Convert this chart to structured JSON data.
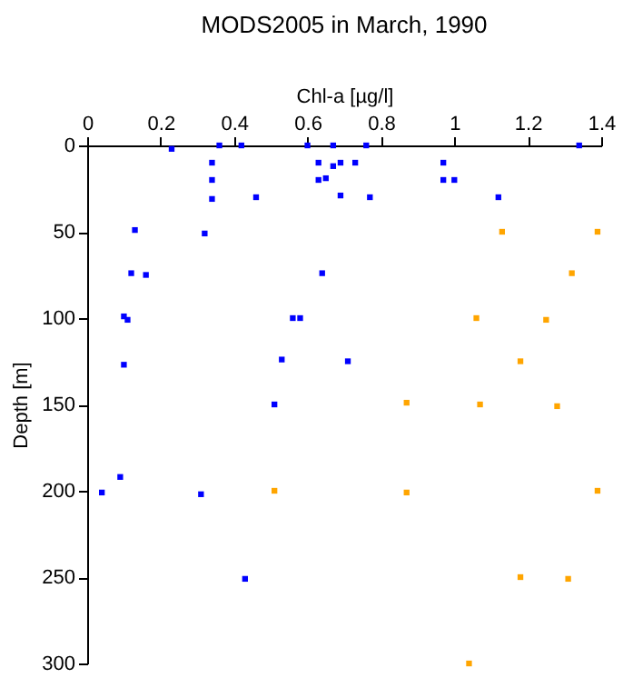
{
  "chart_data": {
    "type": "scatter",
    "title": "MODS2005 in March, 1990",
    "xlabel": "Chl-a [µg/l]",
    "ylabel": "Depth [m]",
    "marker": "square",
    "grid": false,
    "xlim": [
      0,
      1.4
    ],
    "xticks": [
      0,
      0.2,
      0.4,
      0.6,
      0.8,
      1,
      1.2,
      1.4
    ],
    "ylim": [
      300,
      0
    ],
    "yticks": [
      0,
      50,
      100,
      150,
      200,
      250,
      300
    ],
    "series": [
      {
        "color": "#0000ff",
        "x": [
          0.23,
          0.36,
          0.42,
          0.6,
          0.67,
          0.76,
          1.34,
          0.34,
          0.63,
          0.67,
          0.69,
          0.73,
          0.97,
          0.34,
          0.63,
          0.65,
          0.97,
          1.0,
          0.34,
          0.46,
          0.69,
          0.77,
          1.12,
          0.13,
          0.32,
          0.12,
          0.16,
          0.64,
          0.1,
          0.11,
          0.56,
          0.58,
          0.1,
          0.53,
          0.71,
          0.51,
          0.04,
          0.09,
          0.31,
          0.43
        ],
        "values": [
          2,
          0,
          0,
          0,
          0,
          0,
          0,
          10,
          10,
          12,
          10,
          10,
          10,
          20,
          20,
          19,
          20,
          20,
          31,
          30,
          29,
          30,
          30,
          49,
          51,
          74,
          75,
          74,
          99,
          101,
          100,
          100,
          127,
          124,
          125,
          150,
          201,
          192,
          202,
          251
        ]
      },
      {
        "color": "#ffa500",
        "x": [
          1.13,
          1.39,
          1.32,
          1.06,
          1.25,
          1.18,
          0.87,
          1.07,
          1.28,
          0.51,
          0.87,
          1.39,
          1.18,
          1.31,
          1.04
        ],
        "values": [
          50,
          50,
          74,
          100,
          101,
          125,
          149,
          150,
          151,
          200,
          201,
          200,
          250,
          251,
          300
        ]
      }
    ]
  }
}
